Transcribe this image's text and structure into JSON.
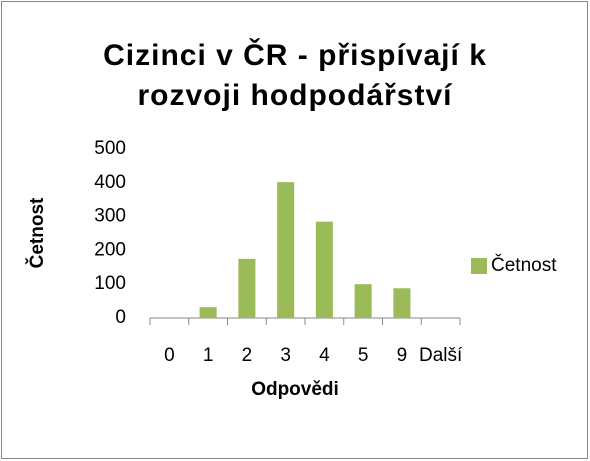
{
  "chart_data": {
    "type": "bar",
    "title": "Cizinci v ČR - přispívají k rozvoji hodpodářství",
    "x_label": "Odpovědi",
    "y_label": "Četnost",
    "categories": [
      "0",
      "1",
      "2",
      "3",
      "4",
      "5",
      "9",
      "Další"
    ],
    "series": [
      {
        "name": "Četnost",
        "color": "#9bbb59",
        "values": [
          0,
          32,
          175,
          402,
          285,
          100,
          88,
          0
        ]
      }
    ],
    "ylim": [
      0,
      500
    ],
    "yticks": [
      0,
      100,
      200,
      300,
      400,
      500
    ],
    "legend": "right"
  }
}
